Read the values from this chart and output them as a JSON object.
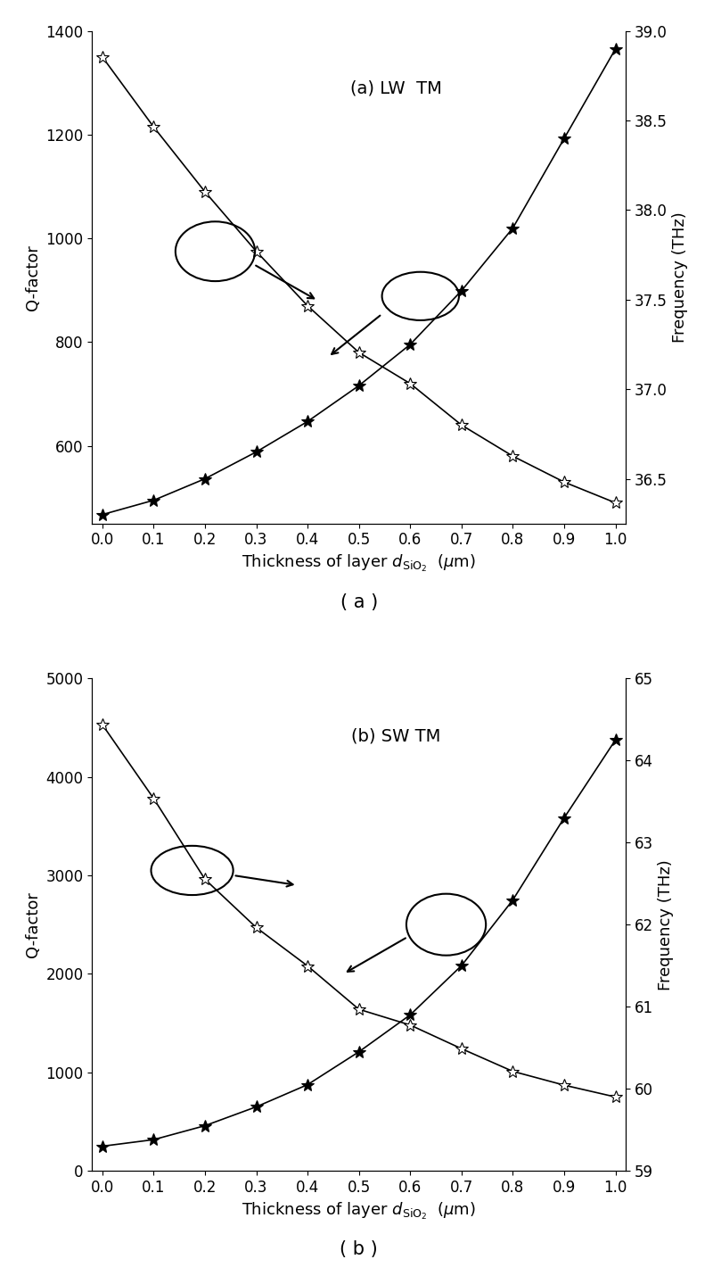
{
  "x": [
    0.0,
    0.1,
    0.2,
    0.3,
    0.4,
    0.5,
    0.6,
    0.7,
    0.8,
    0.9,
    1.0
  ],
  "a_qfactor": [
    1350,
    1215,
    1090,
    975,
    870,
    780,
    720,
    640,
    580,
    530,
    490
  ],
  "a_freq": [
    36.3,
    36.38,
    36.5,
    36.65,
    36.82,
    37.02,
    37.25,
    37.55,
    37.9,
    38.4,
    38.9
  ],
  "a_title": "(a) LW  TM",
  "a_yleft_label": "Q-factor",
  "a_yright_label": "Frequency (THz)",
  "a_yleft_lim": [
    450,
    1400
  ],
  "a_yright_lim": [
    36.25,
    39.0
  ],
  "a_yticks_left": [
    600,
    800,
    1000,
    1200,
    1400
  ],
  "a_yticks_right": [
    36.5,
    37.0,
    37.5,
    38.0,
    38.5,
    39.0
  ],
  "a_caption": "( a )",
  "b_qfactor": [
    4530,
    3780,
    2960,
    2470,
    2080,
    1640,
    1480,
    1240,
    1010,
    870,
    750
  ],
  "b_freq": [
    59.3,
    59.38,
    59.55,
    59.78,
    60.05,
    60.45,
    60.9,
    61.5,
    62.3,
    63.3,
    64.25
  ],
  "b_title": "(b) SW TM",
  "b_yleft_label": "Q-factor",
  "b_yright_label": "Frequency (THz)",
  "b_yleft_lim": [
    0,
    5000
  ],
  "b_yright_lim": [
    59.0,
    65.0
  ],
  "b_yticks_left": [
    0,
    1000,
    2000,
    3000,
    4000,
    5000
  ],
  "b_yticks_right": [
    59,
    60,
    61,
    62,
    63,
    64,
    65
  ],
  "b_caption": "( b )",
  "xlabel": "Thickness of layer $d_{\\mathrm{SiO_2}}$  ($\\mu$m)",
  "xlabel_fontsize": 13,
  "title_fontsize": 14,
  "tick_fontsize": 12,
  "label_fontsize": 13,
  "caption_fontsize": 15,
  "a_ellipse_q": [
    0.22,
    975,
    0.155,
    115
  ],
  "a_arrow_q": [
    0.295,
    950,
    0.42,
    880
  ],
  "a_ellipse_freq": [
    0.62,
    37.52,
    0.15,
    0.27
  ],
  "a_arrow_freq": [
    0.545,
    37.42,
    0.44,
    37.18
  ],
  "b_ellipse_q": [
    0.175,
    3050,
    0.16,
    500
  ],
  "b_arrow_q": [
    0.255,
    3000,
    0.38,
    2900
  ],
  "b_ellipse_freq": [
    0.67,
    62.0,
    0.155,
    0.75
  ],
  "b_arrow_freq": [
    0.595,
    61.85,
    0.47,
    61.4
  ]
}
